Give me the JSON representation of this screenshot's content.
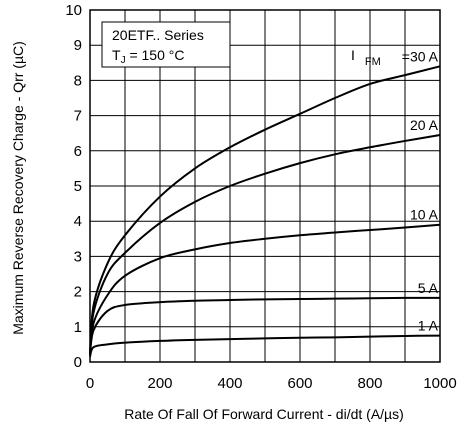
{
  "chart_data": {
    "type": "line",
    "annotation_lines": [
      "20ETF.. Series",
      "T",
      "J",
      " = 150 °C"
    ],
    "xlabel": "Rate Of Fall Of Forward Current - di/dt (A/µs)",
    "ylabel": "Maximum Reverse Recovery Charge - Qrr (µC)",
    "xlim": [
      0,
      1000
    ],
    "ylim": [
      0,
      10
    ],
    "x_ticks": [
      "0",
      "200",
      "400",
      "600",
      "800",
      "1000"
    ],
    "y_ticks": [
      "0",
      "1",
      "2",
      "3",
      "4",
      "5",
      "6",
      "7",
      "8",
      "9",
      "10"
    ],
    "x_minor_step": 100,
    "grid": true,
    "legend_prefix": "I",
    "legend_prefix_sub": "FM",
    "series": [
      {
        "name": "30 A",
        "label_text": "=30 A",
        "x": [
          0,
          10,
          50,
          100,
          200,
          300,
          400,
          500,
          600,
          700,
          800,
          900,
          1000
        ],
        "values": [
          0.2,
          1.6,
          2.8,
          3.6,
          4.7,
          5.5,
          6.1,
          6.6,
          7.05,
          7.5,
          7.9,
          8.15,
          8.4
        ]
      },
      {
        "name": "20 A",
        "label_text": "20 A",
        "x": [
          0,
          10,
          50,
          100,
          200,
          300,
          400,
          500,
          600,
          700,
          800,
          900,
          1000
        ],
        "values": [
          0.2,
          1.4,
          2.5,
          3.1,
          3.95,
          4.55,
          5.0,
          5.35,
          5.65,
          5.9,
          6.1,
          6.28,
          6.45
        ]
      },
      {
        "name": "10 A",
        "label_text": "10 A",
        "x": [
          0,
          10,
          50,
          100,
          200,
          300,
          400,
          500,
          600,
          700,
          800,
          900,
          1000
        ],
        "values": [
          0.2,
          1.1,
          1.9,
          2.45,
          2.95,
          3.2,
          3.38,
          3.5,
          3.6,
          3.68,
          3.75,
          3.82,
          3.9
        ]
      },
      {
        "name": "5 A",
        "label_text": "5 A",
        "x": [
          0,
          10,
          50,
          100,
          200,
          300,
          400,
          500,
          600,
          700,
          800,
          900,
          1000
        ],
        "values": [
          0.2,
          0.9,
          1.45,
          1.62,
          1.7,
          1.74,
          1.76,
          1.78,
          1.79,
          1.8,
          1.81,
          1.82,
          1.82
        ]
      },
      {
        "name": "1 A",
        "label_text": "1 A",
        "x": [
          0,
          10,
          50,
          100,
          200,
          300,
          400,
          500,
          600,
          700,
          800,
          900,
          1000
        ],
        "values": [
          0.15,
          0.42,
          0.5,
          0.55,
          0.6,
          0.63,
          0.65,
          0.67,
          0.69,
          0.7,
          0.72,
          0.74,
          0.75
        ]
      }
    ]
  }
}
